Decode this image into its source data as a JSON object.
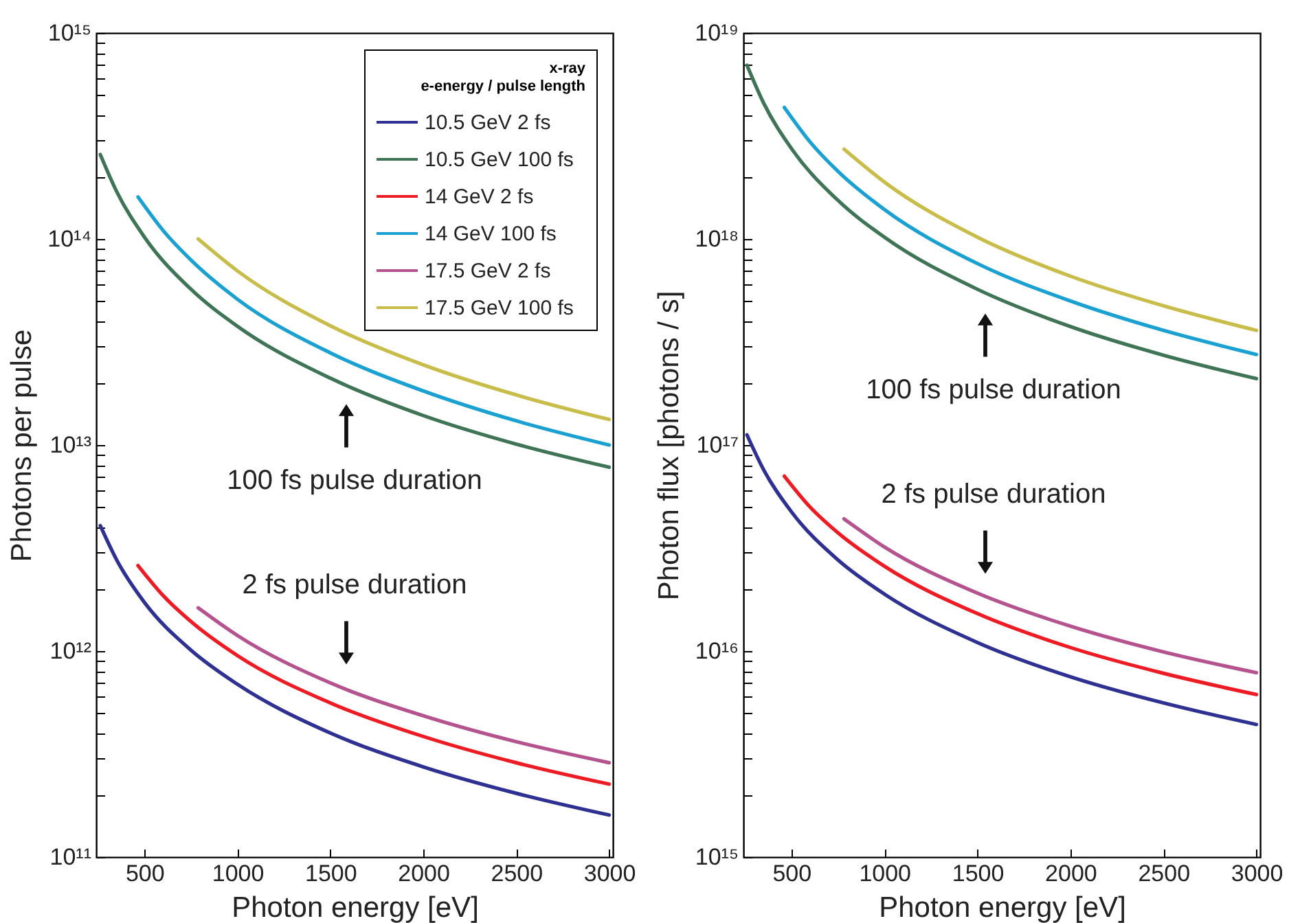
{
  "chart_data": [
    {
      "type": "line",
      "xlabel": "Photon energy [eV]",
      "ylabel": "Photons per pulse",
      "log": "y",
      "legend": "top right",
      "legend_title": "x-ray\ne-energy / pulse length",
      "xlim": [
        240,
        3020
      ],
      "xticks": [
        500,
        1000,
        1500,
        2000,
        2500,
        3000
      ],
      "ylim": [
        100000000000.0,
        1000000000000000.0
      ],
      "yticks": [
        {
          "value": 100000000000.0,
          "label": "10¹¹"
        },
        {
          "value": 200000000000.0,
          "label": null
        },
        {
          "value": 300000000000.0,
          "label": null
        },
        {
          "value": 400000000000.0,
          "label": null
        },
        {
          "value": 500000000000.0,
          "label": null
        },
        {
          "value": 600000000000.0,
          "label": null
        },
        {
          "value": 700000000000.0,
          "label": null
        },
        {
          "value": 800000000000.0,
          "label": null
        },
        {
          "value": 900000000000.0,
          "label": null
        },
        {
          "value": 1000000000000.0,
          "label": "10¹²"
        },
        {
          "value": 2000000000000.0,
          "label": null
        },
        {
          "value": 3000000000000.0,
          "label": null
        },
        {
          "value": 4000000000000.0,
          "label": null
        },
        {
          "value": 5000000000000.0,
          "label": null
        },
        {
          "value": 6000000000000.0,
          "label": null
        },
        {
          "value": 7000000000000.0,
          "label": null
        },
        {
          "value": 8000000000000.0,
          "label": null
        },
        {
          "value": 9000000000000.0,
          "label": null
        },
        {
          "value": 10000000000000.0,
          "label": "10¹³"
        },
        {
          "value": 20000000000000.0,
          "label": null
        },
        {
          "value": 30000000000000.0,
          "label": null
        },
        {
          "value": 40000000000000.0,
          "label": null
        },
        {
          "value": 50000000000000.0,
          "label": null
        },
        {
          "value": 60000000000000.0,
          "label": null
        },
        {
          "value": 70000000000000.0,
          "label": null
        },
        {
          "value": 80000000000000.0,
          "label": null
        },
        {
          "value": 90000000000000.0,
          "label": null
        },
        {
          "value": 100000000000000.0,
          "label": "10¹⁴"
        },
        {
          "value": 200000000000000.0,
          "label": null
        },
        {
          "value": 300000000000000.0,
          "label": null
        },
        {
          "value": 400000000000000.0,
          "label": null
        },
        {
          "value": 500000000000000.0,
          "label": null
        },
        {
          "value": 600000000000000.0,
          "label": null
        },
        {
          "value": 700000000000000.0,
          "label": null
        },
        {
          "value": 800000000000000.0,
          "label": null
        },
        {
          "value": 900000000000000.0,
          "label": null
        },
        {
          "value": 1000000000000000.0,
          "label": "10¹⁵"
        }
      ],
      "series": [
        {
          "name": "10.5 GeV   2 fs",
          "color": "#2e3192",
          "x": [
            262,
            350,
            500,
            750,
            1000,
            1500,
            2000,
            2500,
            3000
          ],
          "values": [
            4060000000000.0,
            2770000000000.0,
            1720000000000.0,
            1010000000000.0,
            690000000000.0,
            400000000000.0,
            274000000000.0,
            204000000000.0,
            160000000000.0
          ]
        },
        {
          "name": "10.5 GeV   100 fs",
          "color": "#3f7556",
          "x": [
            262,
            350,
            500,
            750,
            1000,
            1500,
            2000,
            2500,
            3000
          ],
          "values": [
            257000000000000.0,
            170000000000000.0,
            102000000000000.0,
            57000000000000.0,
            37700000000000.0,
            21100000000000.0,
            13900000000000.0,
            10100000000000.0,
            7800000000000.0
          ]
        },
        {
          "name": "14 GeV   2 fs",
          "color": "#ed1c24",
          "x": [
            465,
            600,
            750,
            1000,
            1500,
            2000,
            2500,
            3000
          ],
          "values": [
            2600000000000.0,
            1860000000000.0,
            1390000000000.0,
            950000000000.0,
            560000000000.0,
            385000000000.0,
            287000000000.0,
            226000000000.0
          ]
        },
        {
          "name": "14 GeV   100 fs",
          "color": "#1ba1d1",
          "x": [
            465,
            600,
            750,
            1000,
            1500,
            2000,
            2500,
            3000
          ],
          "values": [
            160000000000000.0,
            110000000000000.0,
            79000000000000.0,
            51000000000000.0,
            28000000000000.0,
            18300000000000.0,
            13100000000000.0,
            10000000000000.0
          ]
        },
        {
          "name": "17.5 GeV   2 fs",
          "color": "#b5538f",
          "x": [
            789,
            1000,
            1500,
            2000,
            2500,
            3000
          ],
          "values": [
            1620000000000.0,
            1190000000000.0,
            700000000000.0,
            485000000000.0,
            363000000000.0,
            287000000000.0
          ]
        },
        {
          "name": "17.5 GeV   100 fs",
          "color": "#c8bd4a",
          "x": [
            789,
            1000,
            1500,
            2000,
            2500,
            3000
          ],
          "values": [
            100000000000000.0,
            70000000000000.0,
            37900000000000.0,
            24500000000000.0,
            17500000000000.0,
            13300000000000.0
          ]
        }
      ],
      "annotations": [
        "100 fs pulse duration",
        "2 fs pulse duration"
      ]
    },
    {
      "type": "line",
      "xlabel": "Photon energy [eV]",
      "ylabel": "Photon flux [photons / s]",
      "log": "y",
      "xlim": [
        242,
        3020
      ],
      "xticks": [
        500,
        1000,
        1500,
        2000,
        2500,
        3000
      ],
      "ylim": [
        1000000000000000.0,
        1e+19
      ],
      "yticks": [
        {
          "value": 1000000000000000.0,
          "label": "10¹⁵"
        },
        {
          "value": 2000000000000000.0,
          "label": null
        },
        {
          "value": 3000000000000000.0,
          "label": null
        },
        {
          "value": 4000000000000000.0,
          "label": null
        },
        {
          "value": 5000000000000000.0,
          "label": null
        },
        {
          "value": 6000000000000000.0,
          "label": null
        },
        {
          "value": 7000000000000000.0,
          "label": null
        },
        {
          "value": 8000000000000000.0,
          "label": null
        },
        {
          "value": 9000000000000000.0,
          "label": null
        },
        {
          "value": 1e+16,
          "label": "10¹⁶"
        },
        {
          "value": 2e+16,
          "label": null
        },
        {
          "value": 3e+16,
          "label": null
        },
        {
          "value": 4e+16,
          "label": null
        },
        {
          "value": 5e+16,
          "label": null
        },
        {
          "value": 6e+16,
          "label": null
        },
        {
          "value": 7e+16,
          "label": null
        },
        {
          "value": 8e+16,
          "label": null
        },
        {
          "value": 9e+16,
          "label": null
        },
        {
          "value": 1e+17,
          "label": "10¹⁷"
        },
        {
          "value": 2e+17,
          "label": null
        },
        {
          "value": 3e+17,
          "label": null
        },
        {
          "value": 4e+17,
          "label": null
        },
        {
          "value": 5e+17,
          "label": null
        },
        {
          "value": 6e+17,
          "label": null
        },
        {
          "value": 7e+17,
          "label": null
        },
        {
          "value": 8e+17,
          "label": null
        },
        {
          "value": 9e+17,
          "label": null
        },
        {
          "value": 1e+18,
          "label": "10¹⁸"
        },
        {
          "value": 2e+18,
          "label": null
        },
        {
          "value": 3e+18,
          "label": null
        },
        {
          "value": 4e+18,
          "label": null
        },
        {
          "value": 5e+18,
          "label": null
        },
        {
          "value": 6e+18,
          "label": null
        },
        {
          "value": 7e+18,
          "label": null
        },
        {
          "value": 8e+18,
          "label": null
        },
        {
          "value": 9e+18,
          "label": null
        },
        {
          "value": 1e+19,
          "label": "10¹⁹"
        }
      ],
      "series": [
        {
          "color": "#2e3192",
          "x": [
            261,
            350,
            500,
            750,
            1000,
            1500,
            2000,
            2500,
            3000
          ],
          "values": [
            1.12e+17,
            7.6e+16,
            4.74e+16,
            2.77e+16,
            1.89e+16,
            1.1e+16,
            7500000000000000.0,
            5600000000000000.0,
            4400000000000000.0
          ]
        },
        {
          "color": "#3f7556",
          "x": [
            261,
            350,
            500,
            750,
            1000,
            1500,
            2000,
            2500,
            3000
          ],
          "values": [
            6.97e+18,
            4.58e+18,
            2.75e+18,
            1.54e+18,
            1.02e+18,
            5.7e+17,
            3.76e+17,
            2.73e+17,
            2.1e+17
          ]
        },
        {
          "color": "#ed1c24",
          "x": [
            462,
            600,
            750,
            1000,
            1500,
            2000,
            2500,
            3000
          ],
          "values": [
            7.06e+16,
            5e+16,
            3.75e+16,
            2.58e+16,
            1.52e+16,
            1.04e+16,
            7800000000000000.0,
            6150000000000000.0
          ]
        },
        {
          "color": "#1ba1d1",
          "x": [
            462,
            600,
            750,
            1000,
            1500,
            2000,
            2500,
            3000
          ],
          "values": [
            4.35e+18,
            2.96e+18,
            2.13e+18,
            1.39e+18,
            7.6e+17,
            5e+17,
            3.6e+17,
            2.75e+17
          ]
        },
        {
          "color": "#b5538f",
          "x": [
            783,
            1000,
            1500,
            2000,
            2500,
            3000
          ],
          "values": [
            4.38e+16,
            3.2e+16,
            1.91e+16,
            1.32e+16,
            9900000000000000.0,
            7850000000000000.0
          ]
        },
        {
          "color": "#c8bd4a",
          "x": [
            783,
            1000,
            1500,
            2000,
            2500,
            3000
          ],
          "values": [
            2.73e+18,
            1.89e+18,
            1.02e+18,
            6.6e+17,
            4.74e+17,
            3.6e+17
          ]
        }
      ],
      "annotations": [
        "100 fs pulse duration",
        "2 fs pulse duration"
      ]
    }
  ]
}
